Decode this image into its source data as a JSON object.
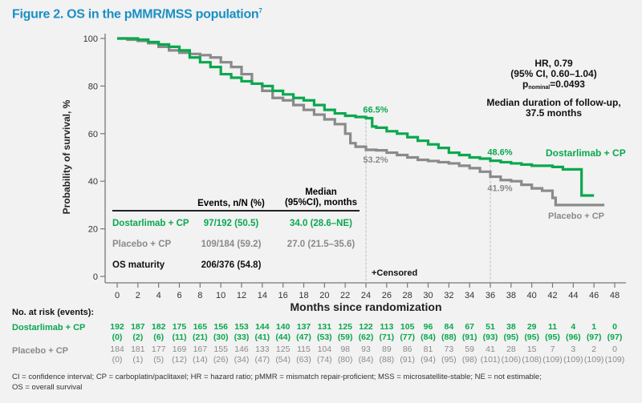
{
  "title": "Figure 2. OS in the pMMR/MSS population",
  "title_superscript": "7",
  "stats": {
    "hr": "HR, 0.79",
    "ci": "(95% CI, 0.60–1.04)",
    "p_prefix": "p",
    "p_subscript": "nominal",
    "p_value": "=0.0493",
    "followup_line1": "Median duration of follow-up,",
    "followup_line2": "37.5 months"
  },
  "legend_table": {
    "header_events": "Events, n/N (%)",
    "header_median_1": "Median",
    "header_median_2": "(95%CI), months",
    "rows": [
      {
        "name": "Dostarlimab + CP",
        "events": "97/192 (50.5)",
        "median": "34.0 (28.6–NE)"
      },
      {
        "name": "Placebo + CP",
        "events": "109/184 (59.2)",
        "median": "27.0 (21.5–35.6)"
      },
      {
        "name": "OS maturity",
        "events": "206/376 (54.8)",
        "median": ""
      }
    ]
  },
  "colors": {
    "dostarlimab": "#0aa84f",
    "placebo": "#8a8a8a",
    "title": "#1a8fc4"
  },
  "chart_data": {
    "type": "line",
    "subtype": "kaplan-meier",
    "xlabel": "Months since randomization",
    "ylabel": "Probability of survival, %",
    "xlim": [
      0,
      48
    ],
    "ylim": [
      0,
      100
    ],
    "xticks": [
      0,
      2,
      4,
      6,
      8,
      10,
      12,
      14,
      16,
      18,
      20,
      22,
      24,
      26,
      28,
      30,
      32,
      34,
      36,
      38,
      40,
      42,
      44,
      46,
      48
    ],
    "yticks": [
      0,
      20,
      40,
      60,
      80,
      100
    ],
    "grid": false,
    "censored_label": "+Censored",
    "reference_lines_x": [
      24,
      36
    ],
    "series": [
      {
        "name": "Dostarlimab + CP",
        "color": "#0aa84f",
        "points": [
          [
            0,
            100
          ],
          [
            1,
            100
          ],
          [
            2,
            99.5
          ],
          [
            3,
            98.5
          ],
          [
            4,
            97.5
          ],
          [
            5,
            96.5
          ],
          [
            6,
            95
          ],
          [
            7,
            92
          ],
          [
            8,
            90
          ],
          [
            9,
            88
          ],
          [
            10,
            85
          ],
          [
            11,
            83.5
          ],
          [
            12,
            82
          ],
          [
            13,
            81
          ],
          [
            14,
            80
          ],
          [
            15,
            78
          ],
          [
            16,
            76.5
          ],
          [
            17,
            75
          ],
          [
            18,
            74
          ],
          [
            19,
            72
          ],
          [
            20,
            70
          ],
          [
            21,
            68.5
          ],
          [
            22,
            67.5
          ],
          [
            23,
            67
          ],
          [
            24,
            66.5
          ],
          [
            24.6,
            63
          ],
          [
            25,
            62.5
          ],
          [
            26,
            61
          ],
          [
            27,
            60
          ],
          [
            28,
            58.5
          ],
          [
            29,
            57
          ],
          [
            30,
            55.5
          ],
          [
            31,
            54
          ],
          [
            32,
            52
          ],
          [
            33,
            51
          ],
          [
            34,
            50
          ],
          [
            35,
            49.5
          ],
          [
            36,
            48.6
          ],
          [
            37,
            48
          ],
          [
            38,
            47.5
          ],
          [
            39,
            47
          ],
          [
            40,
            46.5
          ],
          [
            41,
            46.5
          ],
          [
            42,
            46
          ],
          [
            43,
            45
          ],
          [
            44.8,
            45
          ],
          [
            44.8,
            34
          ],
          [
            46,
            34
          ]
        ],
        "annotations": [
          {
            "x": 24,
            "y": 66.5,
            "label": "66.5%"
          },
          {
            "x": 36,
            "y": 48.6,
            "label": "48.6%"
          }
        ],
        "end_label": "Dostarlimab + CP"
      },
      {
        "name": "Placebo + CP",
        "color": "#8a8a8a",
        "points": [
          [
            0,
            100
          ],
          [
            1,
            99.5
          ],
          [
            2,
            99
          ],
          [
            3,
            98
          ],
          [
            4,
            96.5
          ],
          [
            5,
            95
          ],
          [
            6,
            94
          ],
          [
            7,
            93.5
          ],
          [
            8,
            93
          ],
          [
            9,
            92
          ],
          [
            10,
            90
          ],
          [
            11,
            88
          ],
          [
            12,
            85
          ],
          [
            13,
            81
          ],
          [
            14,
            78
          ],
          [
            15,
            75
          ],
          [
            16,
            74
          ],
          [
            17,
            72
          ],
          [
            18,
            70
          ],
          [
            19,
            68
          ],
          [
            20,
            66
          ],
          [
            21,
            64
          ],
          [
            22,
            60
          ],
          [
            22.5,
            56
          ],
          [
            23,
            54.5
          ],
          [
            24,
            53.2
          ],
          [
            25,
            53
          ],
          [
            26,
            52
          ],
          [
            27,
            51
          ],
          [
            28,
            50
          ],
          [
            29,
            49
          ],
          [
            30,
            48.5
          ],
          [
            31,
            48
          ],
          [
            32,
            47.5
          ],
          [
            33,
            46.5
          ],
          [
            34,
            45.5
          ],
          [
            35,
            44
          ],
          [
            36,
            41.9
          ],
          [
            37,
            40.5
          ],
          [
            38,
            40
          ],
          [
            39,
            38.5
          ],
          [
            40,
            37
          ],
          [
            41,
            36
          ],
          [
            42,
            33
          ],
          [
            42.3,
            30
          ],
          [
            44,
            30
          ],
          [
            46,
            30
          ],
          [
            47,
            30
          ]
        ],
        "annotations": [
          {
            "x": 24,
            "y": 53.2,
            "label": "53.2%"
          },
          {
            "x": 36,
            "y": 41.9,
            "label": "41.9%"
          }
        ],
        "end_label": "Placebo + CP"
      }
    ],
    "number_at_risk": {
      "title": "No. at risk (events):",
      "times": [
        0,
        2,
        4,
        6,
        8,
        10,
        12,
        14,
        16,
        18,
        20,
        22,
        24,
        26,
        28,
        30,
        32,
        34,
        36,
        38,
        40,
        42,
        44,
        46,
        48
      ],
      "dostarlimab": {
        "label": "Dostarlimab + CP",
        "n": [
          "192",
          "187",
          "182",
          "175",
          "165",
          "156",
          "153",
          "144",
          "140",
          "137",
          "131",
          "125",
          "122",
          "113",
          "105",
          "96",
          "84",
          "67",
          "51",
          "38",
          "29",
          "11",
          "4",
          "1",
          "0"
        ],
        "events": [
          "(0)",
          "(2)",
          "(6)",
          "(11)",
          "(21)",
          "(30)",
          "(33)",
          "(41)",
          "(44)",
          "(47)",
          "(53)",
          "(59)",
          "(62)",
          "(71)",
          "(77)",
          "(84)",
          "(88)",
          "(91)",
          "(93)",
          "(95)",
          "(95)",
          "(95)",
          "(96)",
          "(97)",
          "(97)"
        ]
      },
      "placebo": {
        "label": "Placebo + CP",
        "n": [
          "184",
          "181",
          "177",
          "169",
          "167",
          "155",
          "146",
          "133",
          "125",
          "115",
          "104",
          "98",
          "93",
          "89",
          "86",
          "81",
          "73",
          "59",
          "41",
          "28",
          "15",
          "7",
          "3",
          "2",
          "0"
        ],
        "events": [
          "(0)",
          "(1)",
          "(5)",
          "(12)",
          "(14)",
          "(26)",
          "(34)",
          "(47)",
          "(54)",
          "(63)",
          "(74)",
          "(80)",
          "(84)",
          "(88)",
          "(91)",
          "(94)",
          "(95)",
          "(98)",
          "(101)",
          "(106)",
          "(108)",
          "(109)",
          "(109)",
          "(109)",
          "(109)"
        ]
      }
    }
  },
  "footnote_line1": "CI = confidence interval; CP = carboplatin/paclitaxel; HR = hazard ratio; pMMR = mismatch repair-proficient; MSS = microsatellite-stable; NE = not estimable;",
  "footnote_line2": "OS = overall survival"
}
